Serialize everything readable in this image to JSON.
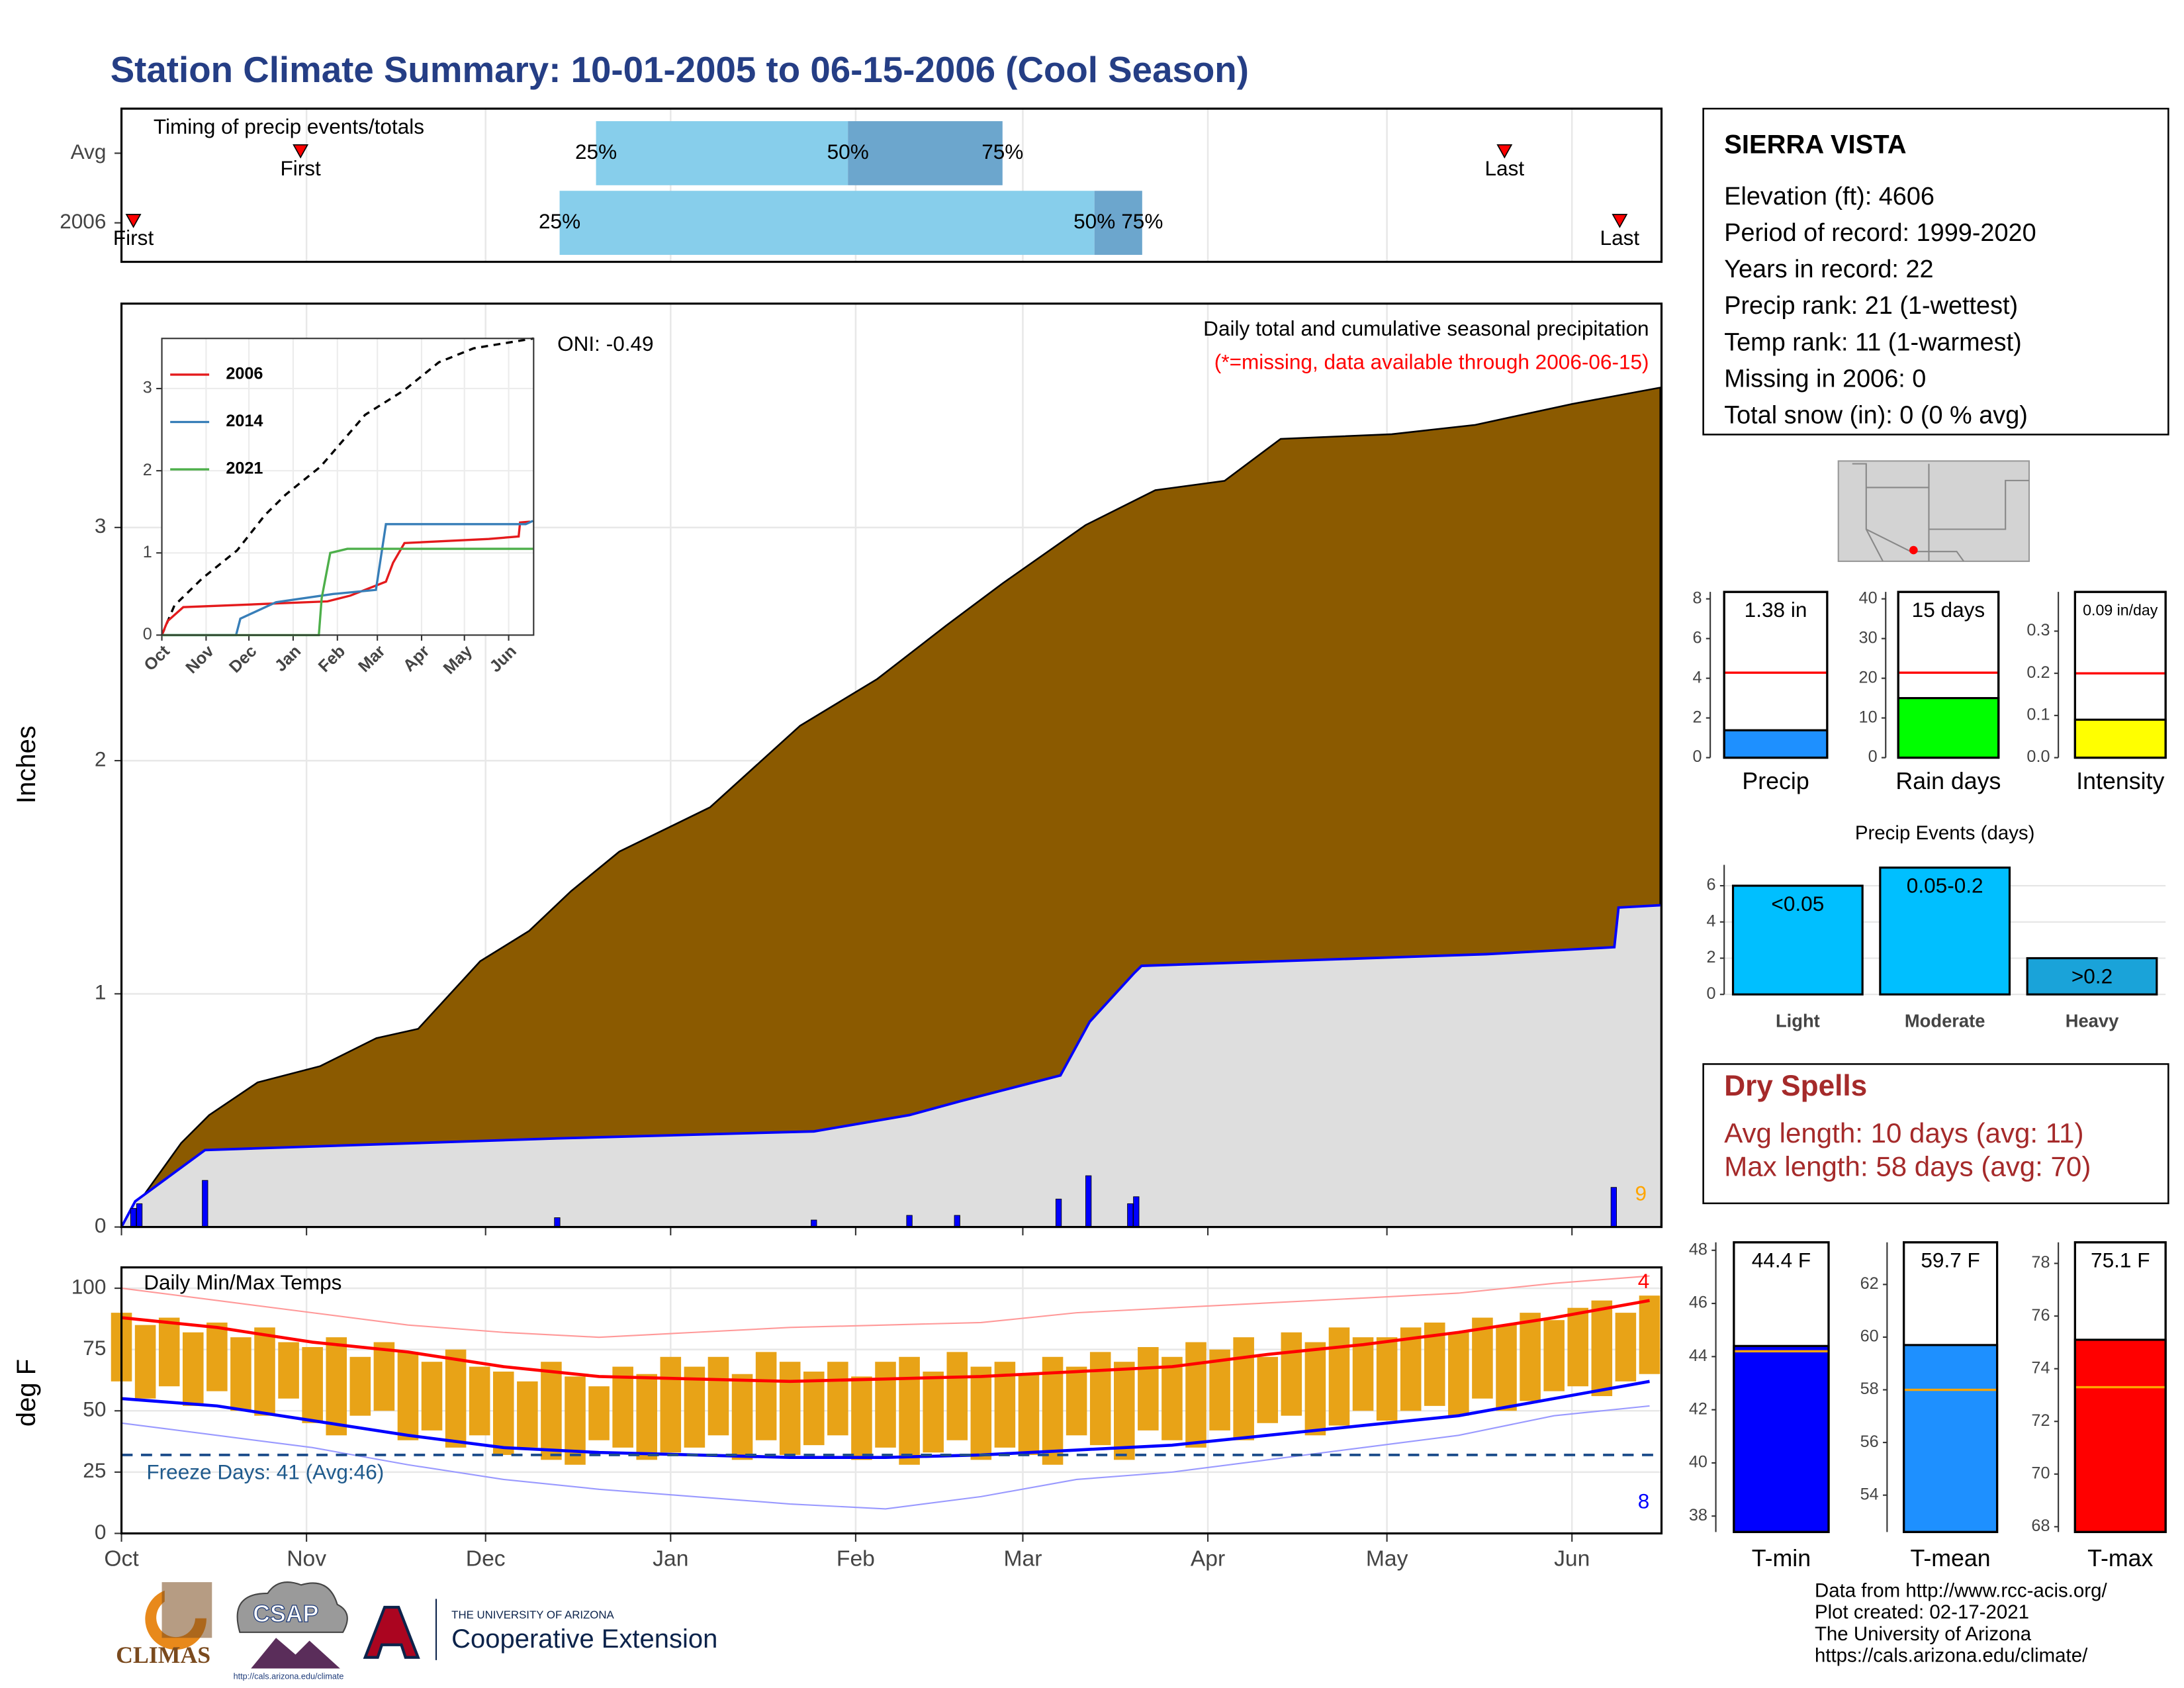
{
  "title": "Station Climate Summary: 10-01-2005 to 06-15-2006 (Cool Season)",
  "station": {
    "name": "SIERRA VISTA",
    "lines": [
      "Elevation (ft): 4606",
      "Period of record: 1999-2020",
      "Years in record: 22",
      "Precip rank: 21 (1-wettest)",
      "Temp rank: 11 (1-warmest)",
      "Missing in 2006: 0",
      "Total snow (in): 0 (0 % avg)"
    ]
  },
  "dry_spells": {
    "title": "Dry Spells",
    "lines": [
      "Avg length: 10 days (avg: 11)",
      "Max length: 58 days (avg: 70)"
    ]
  },
  "footer": {
    "credits": [
      "Data from http://www.rcc-acis.org/",
      "Plot created: 02-17-2021",
      "The University of Arizona",
      "https://cals.arizona.edu/climate/"
    ],
    "logos": [
      "CLIMAS",
      "CSAP",
      "http://cals.arizona.edu/climate",
      "THE UNIVERSITY OF ARIZONA",
      "Cooperative Extension"
    ]
  },
  "chart_data": [
    {
      "type": "timing",
      "title": "Timing of precip events/totals",
      "categories": [
        "Avg",
        "2006"
      ],
      "points": [
        "First",
        "25%",
        "50%",
        "75%",
        "Last"
      ],
      "values": [
        [
          30,
          79.5,
          121.7,
          147.6,
          231.7
        ],
        [
          2,
          73.4,
          163,
          171,
          251
        ]
      ],
      "colors": [
        "#87CEEB",
        "#6CA6CD"
      ],
      "marker_color": "#FF0000",
      "xlim": [
        0,
        258
      ]
    },
    {
      "type": "cumulative",
      "ylabel": "Inches",
      "xlim": [
        0,
        258
      ],
      "ylim": [
        0,
        3.96
      ],
      "yticks": [
        0,
        1,
        2,
        3
      ],
      "grid": true,
      "annotations": [
        "ONI: -0.49",
        "Daily total and cumulative seasonal precipitation",
        "(*=missing, data available through 2006-06-15)",
        "9"
      ],
      "average": {
        "color": "#8B5A00",
        "x": [
          0,
          3,
          10,
          14.7,
          22.8,
          33.3,
          42.7,
          49.7,
          60.1,
          68.3,
          75.3,
          83.4,
          98.6,
          113.7,
          126.6,
          138.2,
          147.6,
          161.5,
          173.2,
          184.8,
          194.2,
          212.8,
          226.8,
          243.1,
          257.8
        ],
        "values": [
          0,
          0.11,
          0.36,
          0.48,
          0.62,
          0.69,
          0.81,
          0.85,
          1.14,
          1.27,
          1.44,
          1.61,
          1.8,
          2.15,
          2.35,
          2.58,
          2.76,
          3.01,
          3.16,
          3.2,
          3.38,
          3.4,
          3.44,
          3.53,
          3.6
        ]
      },
      "current": {
        "color": "#0000FF",
        "fill": "#DEDEDE",
        "x": [
          0,
          2.3,
          14,
          73,
          116,
          132,
          140.6,
          157.3,
          162.2,
          169.7,
          170.9,
          228.7,
          250.1,
          250.8,
          257.8
        ],
        "values": [
          0,
          0.11,
          0.33,
          0.38,
          0.41,
          0.48,
          0.54,
          0.65,
          0.88,
          1.09,
          1.12,
          1.17,
          1.2,
          1.37,
          1.38
        ]
      },
      "daily": {
        "color": "#0000FF",
        "x": [
          2,
          3,
          14,
          73,
          116,
          132,
          140,
          157,
          162,
          169,
          170,
          250
        ],
        "values": [
          0.08,
          0.1,
          0.2,
          0.04,
          0.03,
          0.05,
          0.05,
          0.12,
          0.22,
          0.1,
          0.13,
          0.17
        ]
      }
    },
    {
      "type": "line",
      "xlim": [
        0,
        260.5
      ],
      "ylim": [
        0,
        3.61
      ],
      "yticks": [
        0,
        1,
        2,
        3
      ],
      "xticks": [
        {
          "value": 0,
          "label": "Oct"
        },
        {
          "value": 31,
          "label": "Nov"
        },
        {
          "value": 61,
          "label": "Dec"
        },
        {
          "value": 92,
          "label": "Jan"
        },
        {
          "value": 123,
          "label": "Feb"
        },
        {
          "value": 151,
          "label": "Mar"
        },
        {
          "value": 182,
          "label": "Apr"
        },
        {
          "value": 212,
          "label": "May"
        },
        {
          "value": 243,
          "label": "Jun"
        }
      ],
      "series": [
        {
          "color": "#000000",
          "dashed": true,
          "x": [
            0,
            8.8,
            28.3,
            52.7,
            72.2,
            86.8,
            111.2,
            142.4,
            169.8,
            194.1,
            218.5,
            260.5
          ],
          "values": [
            0,
            0.36,
            0.69,
            1.03,
            1.46,
            1.71,
            2.05,
            2.68,
            2.98,
            3.32,
            3.49,
            3.61
          ]
        },
        {
          "name": "2006",
          "color": "#E41A1C",
          "x": [
            0,
            4,
            15,
            73,
            116,
            132,
            157,
            162,
            170,
            229,
            250,
            251,
            258
          ],
          "values": [
            0,
            0.17,
            0.34,
            0.38,
            0.41,
            0.48,
            0.65,
            0.88,
            1.12,
            1.17,
            1.2,
            1.37,
            1.38
          ]
        },
        {
          "name": "2014",
          "color": "#377EB8",
          "x": [
            0,
            52,
            55,
            80,
            120,
            150,
            157,
            255,
            260
          ],
          "values": [
            0,
            0,
            0.2,
            0.4,
            0.5,
            0.55,
            1.35,
            1.35,
            1.39
          ]
        },
        {
          "name": "2021",
          "color": "#4DAF4A",
          "x": [
            0,
            110,
            112,
            118,
            130,
            260
          ],
          "values": [
            0,
            0,
            0.45,
            1,
            1.05,
            1.05
          ]
        }
      ]
    },
    {
      "type": "temperature",
      "title": "Daily Min/Max Temps",
      "ylabel": "deg F",
      "xlim": [
        0,
        258
      ],
      "ylim": [
        0,
        108.5
      ],
      "yticks": [
        0,
        25,
        50,
        75,
        100
      ],
      "grid": true,
      "xticks": [
        {
          "value": 0,
          "label": "Oct"
        },
        {
          "value": 31,
          "label": "Nov"
        },
        {
          "value": 61,
          "label": "Dec"
        },
        {
          "value": 92,
          "label": "Jan"
        },
        {
          "value": 123,
          "label": "Feb"
        },
        {
          "value": 151,
          "label": "Mar"
        },
        {
          "value": 182,
          "label": "Apr"
        },
        {
          "value": 212,
          "label": "May"
        },
        {
          "value": 243,
          "label": "Jun"
        }
      ],
      "freeze": 32,
      "freeze_label": "Freeze Days: 41 (Avg:46)",
      "annotations": [
        "4",
        "8"
      ],
      "bar_color": "#E8A317",
      "daily": {
        "x": [
          0,
          4,
          8,
          12,
          16,
          20,
          24,
          28,
          32,
          36,
          40,
          44,
          48,
          52,
          56,
          60,
          64,
          68,
          72,
          76,
          80,
          84,
          88,
          92,
          96,
          100,
          104,
          108,
          112,
          116,
          120,
          124,
          128,
          132,
          136,
          140,
          144,
          148,
          152,
          156,
          160,
          164,
          168,
          172,
          176,
          180,
          184,
          188,
          192,
          196,
          200,
          204,
          208,
          212,
          216,
          220,
          224,
          228,
          232,
          236,
          240,
          244,
          248,
          252,
          256
        ],
        "min": [
          62,
          55,
          60,
          52,
          58,
          50,
          48,
          55,
          45,
          40,
          48,
          50,
          38,
          42,
          35,
          40,
          32,
          35,
          30,
          28,
          38,
          35,
          30,
          33,
          35,
          40,
          30,
          38,
          32,
          36,
          40,
          30,
          35,
          28,
          33,
          38,
          30,
          35,
          32,
          28,
          40,
          36,
          30,
          42,
          38,
          35,
          42,
          38,
          45,
          48,
          40,
          44,
          50,
          46,
          50,
          52,
          48,
          55,
          50,
          54,
          58,
          60,
          56,
          62,
          65
        ],
        "max": [
          90,
          85,
          88,
          82,
          86,
          80,
          84,
          78,
          76,
          80,
          72,
          78,
          74,
          70,
          75,
          68,
          66,
          62,
          70,
          64,
          60,
          68,
          65,
          72,
          68,
          72,
          65,
          74,
          70,
          66,
          70,
          64,
          70,
          72,
          66,
          74,
          68,
          70,
          65,
          72,
          68,
          74,
          70,
          76,
          72,
          78,
          75,
          80,
          72,
          82,
          78,
          84,
          80,
          80,
          84,
          86,
          82,
          88,
          85,
          90,
          87,
          92,
          95,
          90,
          97
        ]
      },
      "series": [
        {
          "color": "#FF9999",
          "width": 1,
          "x": [
            0,
            16,
            32,
            48,
            64,
            80,
            96,
            112,
            128,
            144,
            160,
            176,
            192,
            208,
            224,
            240,
            256
          ],
          "values": [
            100,
            95,
            90,
            85,
            82,
            80,
            82,
            84,
            85,
            86,
            90,
            92,
            94,
            96,
            98,
            102,
            105
          ]
        },
        {
          "color": "#9999FF",
          "width": 1,
          "x": [
            0,
            16,
            32,
            48,
            64,
            80,
            96,
            112,
            128,
            144,
            160,
            176,
            192,
            208,
            224,
            240,
            256
          ],
          "values": [
            45,
            40,
            35,
            28,
            22,
            18,
            15,
            12,
            10,
            15,
            22,
            25,
            30,
            35,
            40,
            48,
            52
          ]
        },
        {
          "color": "#FF0000",
          "width": 2.2,
          "x": [
            0,
            16,
            32,
            48,
            64,
            80,
            96,
            112,
            128,
            144,
            160,
            176,
            192,
            208,
            224,
            240,
            256
          ],
          "values": [
            88,
            84,
            78,
            74,
            68,
            64,
            63,
            62,
            63,
            64,
            66,
            68,
            73,
            77,
            82,
            88,
            95
          ]
        },
        {
          "color": "#0000FF",
          "width": 2.2,
          "x": [
            0,
            16,
            32,
            48,
            64,
            80,
            96,
            112,
            128,
            144,
            160,
            176,
            192,
            208,
            224,
            240,
            256
          ],
          "values": [
            55,
            52,
            46,
            40,
            35,
            33,
            32,
            31,
            31,
            32,
            34,
            36,
            40,
            44,
            48,
            55,
            62
          ]
        }
      ]
    },
    {
      "type": "bar",
      "categories": [
        "Precip"
      ],
      "values": [
        1.38
      ],
      "value_labels": [
        "1.38 in"
      ],
      "color": "#1E90FF",
      "average": 4.28,
      "average_color": "#FF0000",
      "ylim": [
        0,
        8.35
      ],
      "yticks": [
        0,
        2,
        4,
        6,
        8
      ]
    },
    {
      "type": "bar",
      "categories": [
        "Rain days"
      ],
      "values": [
        15
      ],
      "value_labels": [
        "15 days"
      ],
      "color": "#00FF00",
      "average": 21.4,
      "average_color": "#FF0000",
      "ylim": [
        0,
        41.75
      ],
      "yticks": [
        0,
        10,
        20,
        30,
        40
      ]
    },
    {
      "type": "bar",
      "categories": [
        "Intensity"
      ],
      "values": [
        0.09
      ],
      "value_labels": [
        "0.09 in/day"
      ],
      "color": "#FFFF00",
      "average": 0.2,
      "average_color": "#FF0000",
      "ylim": [
        0,
        0.393
      ],
      "yticks": [
        {
          "value": 0,
          "label": "0.0"
        },
        0.1,
        0.2,
        0.3
      ]
    },
    {
      "type": "bar",
      "title": "Precip Events (days)",
      "categories": [
        "Light",
        "Moderate",
        "Heavy"
      ],
      "values": [
        6,
        7,
        2
      ],
      "value_labels": [
        "<0.05",
        "0.05-0.2",
        ">0.2"
      ],
      "colors": [
        "#00BFFF",
        "#00BFFF",
        "#1AA3D9"
      ],
      "ylim": [
        0,
        7.15
      ],
      "yticks": [
        0,
        2,
        4,
        6
      ],
      "grid": true
    },
    {
      "type": "bar",
      "categories": [
        "T-min"
      ],
      "values": [
        44.4
      ],
      "value_labels": [
        "44.4 F"
      ],
      "color": "#0000FF",
      "average": 44.2,
      "average_color": "#FFA500",
      "ylim": [
        37.4,
        48.3
      ],
      "yticks": [
        38,
        40,
        42,
        44,
        46,
        48
      ]
    },
    {
      "type": "bar",
      "categories": [
        "T-mean"
      ],
      "values": [
        59.7
      ],
      "value_labels": [
        "59.7 F"
      ],
      "color": "#1E90FF",
      "average": 58,
      "average_color": "#FFA500",
      "ylim": [
        52.6,
        63.6
      ],
      "yticks": [
        54,
        56,
        58,
        60,
        62
      ]
    },
    {
      "type": "bar",
      "categories": [
        "T-max"
      ],
      "values": [
        75.1
      ],
      "value_labels": [
        "75.1 F"
      ],
      "color": "#FF0000",
      "average": 73.3,
      "average_color": "#FFA500",
      "ylim": [
        67.8,
        78.8
      ],
      "yticks": [
        68,
        70,
        72,
        74,
        76,
        78
      ]
    }
  ]
}
